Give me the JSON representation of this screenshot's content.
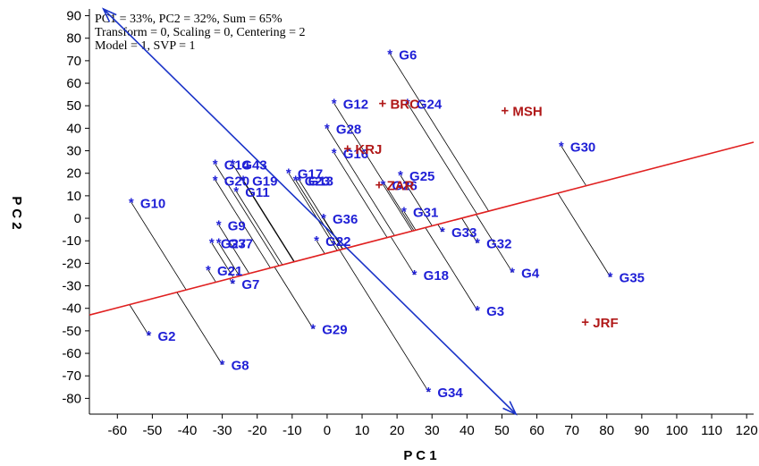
{
  "chart_data": {
    "type": "scatter",
    "info_lines": [
      "PC1 = 33%, PC2 = 32%, Sum = 65%",
      "Transform = 0, Scaling = 0, Centering = 2",
      "Model = 1, SVP = 1"
    ],
    "xlabel": "P C 1",
    "ylabel": "P C 2",
    "xlim": [
      -68,
      122
    ],
    "ylim": [
      -87,
      93
    ],
    "xticks": [
      -60,
      -50,
      -40,
      -30,
      -20,
      -10,
      0,
      10,
      20,
      30,
      40,
      50,
      60,
      70,
      80,
      90,
      100,
      110,
      120
    ],
    "yticks": [
      90,
      80,
      70,
      60,
      50,
      40,
      30,
      20,
      10,
      0,
      -10,
      -20,
      -30,
      -40,
      -50,
      -60,
      -70,
      -80
    ],
    "colors": {
      "genotype": "#1f1fd6",
      "environment": "#b01818",
      "axis_line": "#e02020",
      "arrow": "#1a33c8",
      "perp": "#000000"
    },
    "reference_line": {
      "slope": 0.404,
      "intercept": -15.5
    },
    "ordinate_arrow": {
      "from": [
        -64,
        93
      ],
      "to": [
        54,
        -87
      ]
    },
    "genotypes": [
      {
        "name": "G6",
        "x": 18,
        "y": 73
      },
      {
        "name": "G12",
        "x": 2,
        "y": 51
      },
      {
        "name": "G24",
        "x": 23,
        "y": 51
      },
      {
        "name": "G28",
        "x": 0,
        "y": 40
      },
      {
        "name": "G16",
        "x": 2,
        "y": 29
      },
      {
        "name": "G30",
        "x": 67,
        "y": 32
      },
      {
        "name": "G43",
        "x": -27,
        "y": 24
      },
      {
        "name": "G14",
        "x": -32,
        "y": 24
      },
      {
        "name": "G17",
        "x": -11,
        "y": 20
      },
      {
        "name": "G23",
        "x": -9,
        "y": 17
      },
      {
        "name": "G13",
        "x": -8,
        "y": 17
      },
      {
        "name": "G19",
        "x": -24,
        "y": 17
      },
      {
        "name": "G20",
        "x": -32,
        "y": 17
      },
      {
        "name": "G11",
        "x": -26,
        "y": 12
      },
      {
        "name": "G25",
        "x": 21,
        "y": 19
      },
      {
        "name": "G26",
        "x": 16,
        "y": 15
      },
      {
        "name": "G10",
        "x": -56,
        "y": 7
      },
      {
        "name": "G36",
        "x": -1,
        "y": 0
      },
      {
        "name": "G31",
        "x": 22,
        "y": 3
      },
      {
        "name": "G9",
        "x": -31,
        "y": -3
      },
      {
        "name": "G33",
        "x": 33,
        "y": -6
      },
      {
        "name": "G37",
        "x": -31,
        "y": -11
      },
      {
        "name": "G27",
        "x": -33,
        "y": -11
      },
      {
        "name": "G22",
        "x": -3,
        "y": -10
      },
      {
        "name": "G32",
        "x": 43,
        "y": -11
      },
      {
        "name": "G21",
        "x": -34,
        "y": -23
      },
      {
        "name": "G18",
        "x": 25,
        "y": -25
      },
      {
        "name": "G4",
        "x": 53,
        "y": -24
      },
      {
        "name": "G7",
        "x": -27,
        "y": -29
      },
      {
        "name": "G35",
        "x": 81,
        "y": -26
      },
      {
        "name": "G3",
        "x": 43,
        "y": -41
      },
      {
        "name": "G29",
        "x": -4,
        "y": -49
      },
      {
        "name": "G2",
        "x": -51,
        "y": -52
      },
      {
        "name": "G8",
        "x": -30,
        "y": -65
      },
      {
        "name": "G34",
        "x": 29,
        "y": -77
      }
    ],
    "environments": [
      {
        "name": "BRC",
        "x": 16,
        "y": 51
      },
      {
        "name": "MSH",
        "x": 51,
        "y": 48
      },
      {
        "name": "KRJ",
        "x": 6,
        "y": 31
      },
      {
        "name": "ZAR",
        "x": 15,
        "y": 15
      },
      {
        "name": "JRF",
        "x": 74,
        "y": -46
      }
    ]
  }
}
